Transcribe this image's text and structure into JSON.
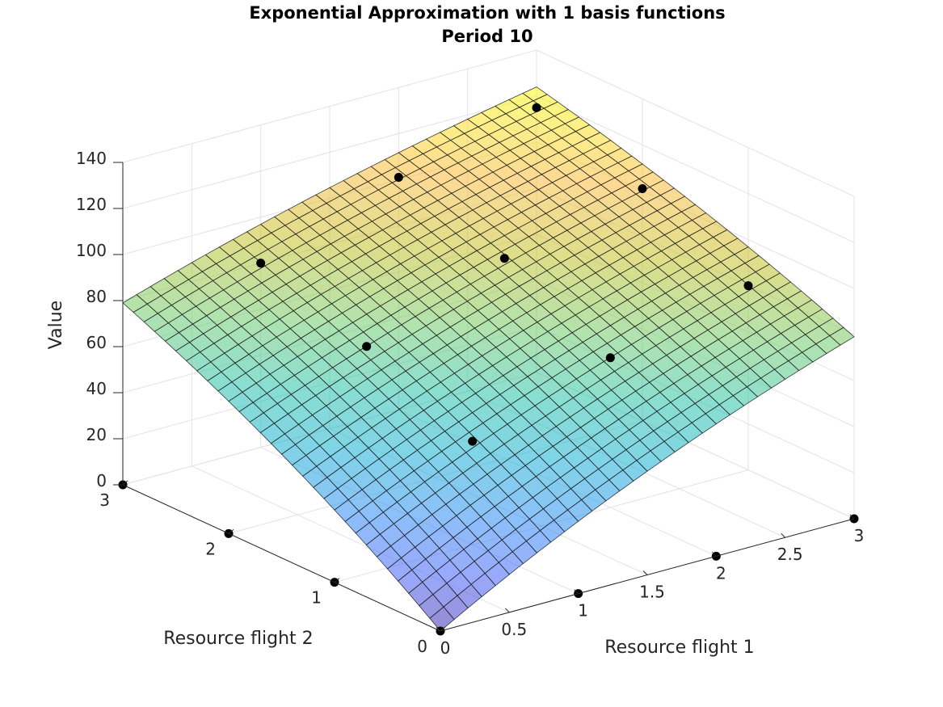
{
  "chart_data": {
    "type": "surface",
    "title": "Exponential Approximation with 1 basis functions",
    "subtitle": "Period 10",
    "xlabel": "Resource flight 1",
    "ylabel": "Resource flight 2",
    "zlabel": "Value",
    "xlim": [
      0,
      3
    ],
    "ylim": [
      0,
      3
    ],
    "zlim": [
      0,
      140
    ],
    "x_ticks": [
      "0",
      "0.5",
      "1",
      "1.5",
      "2",
      "2.5",
      "3"
    ],
    "y_ticks": [
      "0",
      "1",
      "2",
      "3"
    ],
    "z_ticks": [
      "0",
      "20",
      "40",
      "60",
      "80",
      "100",
      "120",
      "140"
    ],
    "grid": true,
    "surface": {
      "function": "exponential",
      "corner_values": {
        "x0_y0": 0,
        "x3_y0": 79,
        "x0_y3": 79,
        "x3_y3": 124
      },
      "colormap": "parula",
      "alpha": 0.55,
      "mesh_divisions": 30
    },
    "points": [
      {
        "x": 0,
        "y": 0,
        "z": 0
      },
      {
        "x": 1,
        "y": 0,
        "z": 0
      },
      {
        "x": 2,
        "y": 0,
        "z": 0
      },
      {
        "x": 3,
        "y": 0,
        "z": 0
      },
      {
        "x": 0,
        "y": 1,
        "z": 0
      },
      {
        "x": 0,
        "y": 2,
        "z": 0
      },
      {
        "x": 0,
        "y": 3,
        "z": 0
      },
      {
        "x": 1,
        "y": 1,
        "z": 45
      },
      {
        "x": 2,
        "y": 1,
        "z": 65
      },
      {
        "x": 3,
        "y": 1,
        "z": 80
      },
      {
        "x": 1,
        "y": 2,
        "z": 65
      },
      {
        "x": 2,
        "y": 2,
        "z": 87
      },
      {
        "x": 3,
        "y": 2,
        "z": 101
      },
      {
        "x": 1,
        "y": 3,
        "z": 80
      },
      {
        "x": 2,
        "y": 3,
        "z": 101
      },
      {
        "x": 3,
        "y": 3,
        "z": 115
      }
    ]
  }
}
